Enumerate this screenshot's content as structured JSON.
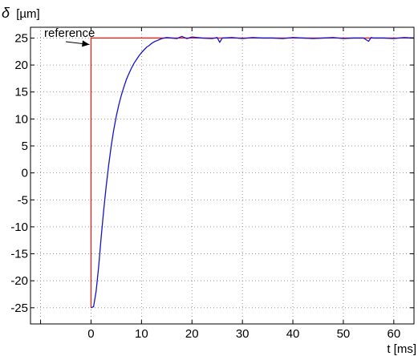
{
  "chart_data": {
    "type": "line",
    "title": "",
    "xlabel": "t [ms]",
    "ylabel_symbol": "δ",
    "ylabel_unit": "[µm]",
    "xlim": [
      -12,
      64
    ],
    "ylim": [
      -28,
      27
    ],
    "xticks": [
      0,
      10,
      20,
      30,
      40,
      50,
      60
    ],
    "yticks": [
      25,
      20,
      15,
      10,
      5,
      0,
      -5,
      -10,
      -15,
      -20,
      -25
    ],
    "grid": true,
    "annotations": [
      {
        "text": "reference",
        "points_to": [
          0,
          25
        ]
      }
    ],
    "series": [
      {
        "color": "#e0201b",
        "x": [
          0,
          0,
          64
        ],
        "y": [
          -25,
          25,
          25
        ]
      },
      {
        "color": "#1414c8",
        "x": [
          0,
          0.5,
          1,
          1.5,
          2,
          2.5,
          3,
          3.5,
          4,
          4.5,
          5,
          5.5,
          6,
          6.5,
          7,
          7.5,
          8,
          8.5,
          9,
          9.5,
          10,
          10.5,
          11,
          11.5,
          12,
          12.5,
          13,
          13.5,
          14,
          15,
          16,
          17,
          18,
          19,
          20,
          22,
          24,
          25,
          25.5,
          26,
          28,
          30,
          32,
          34,
          36,
          38,
          40,
          42,
          44,
          46,
          48,
          50,
          52,
          54,
          55,
          55.5,
          56,
          58,
          60,
          62,
          64
        ],
        "y": [
          -25,
          -24.8,
          -22,
          -17.5,
          -12,
          -7,
          -2.5,
          1.5,
          5,
          8,
          10.5,
          12.6,
          14.4,
          15.9,
          17.3,
          18.4,
          19.4,
          20.3,
          21,
          21.7,
          22.3,
          22.8,
          23.3,
          23.6,
          24,
          24.3,
          24.5,
          24.7,
          24.9,
          25.1,
          25,
          24.9,
          25.3,
          24.9,
          25.2,
          25,
          24.9,
          25.1,
          24.2,
          25,
          25.1,
          24.9,
          25.1,
          25,
          25,
          24.9,
          25.1,
          25,
          24.9,
          25,
          25.1,
          24.9,
          25,
          25,
          24.4,
          25.1,
          25,
          25,
          24.9,
          25.1,
          25
        ]
      }
    ]
  }
}
